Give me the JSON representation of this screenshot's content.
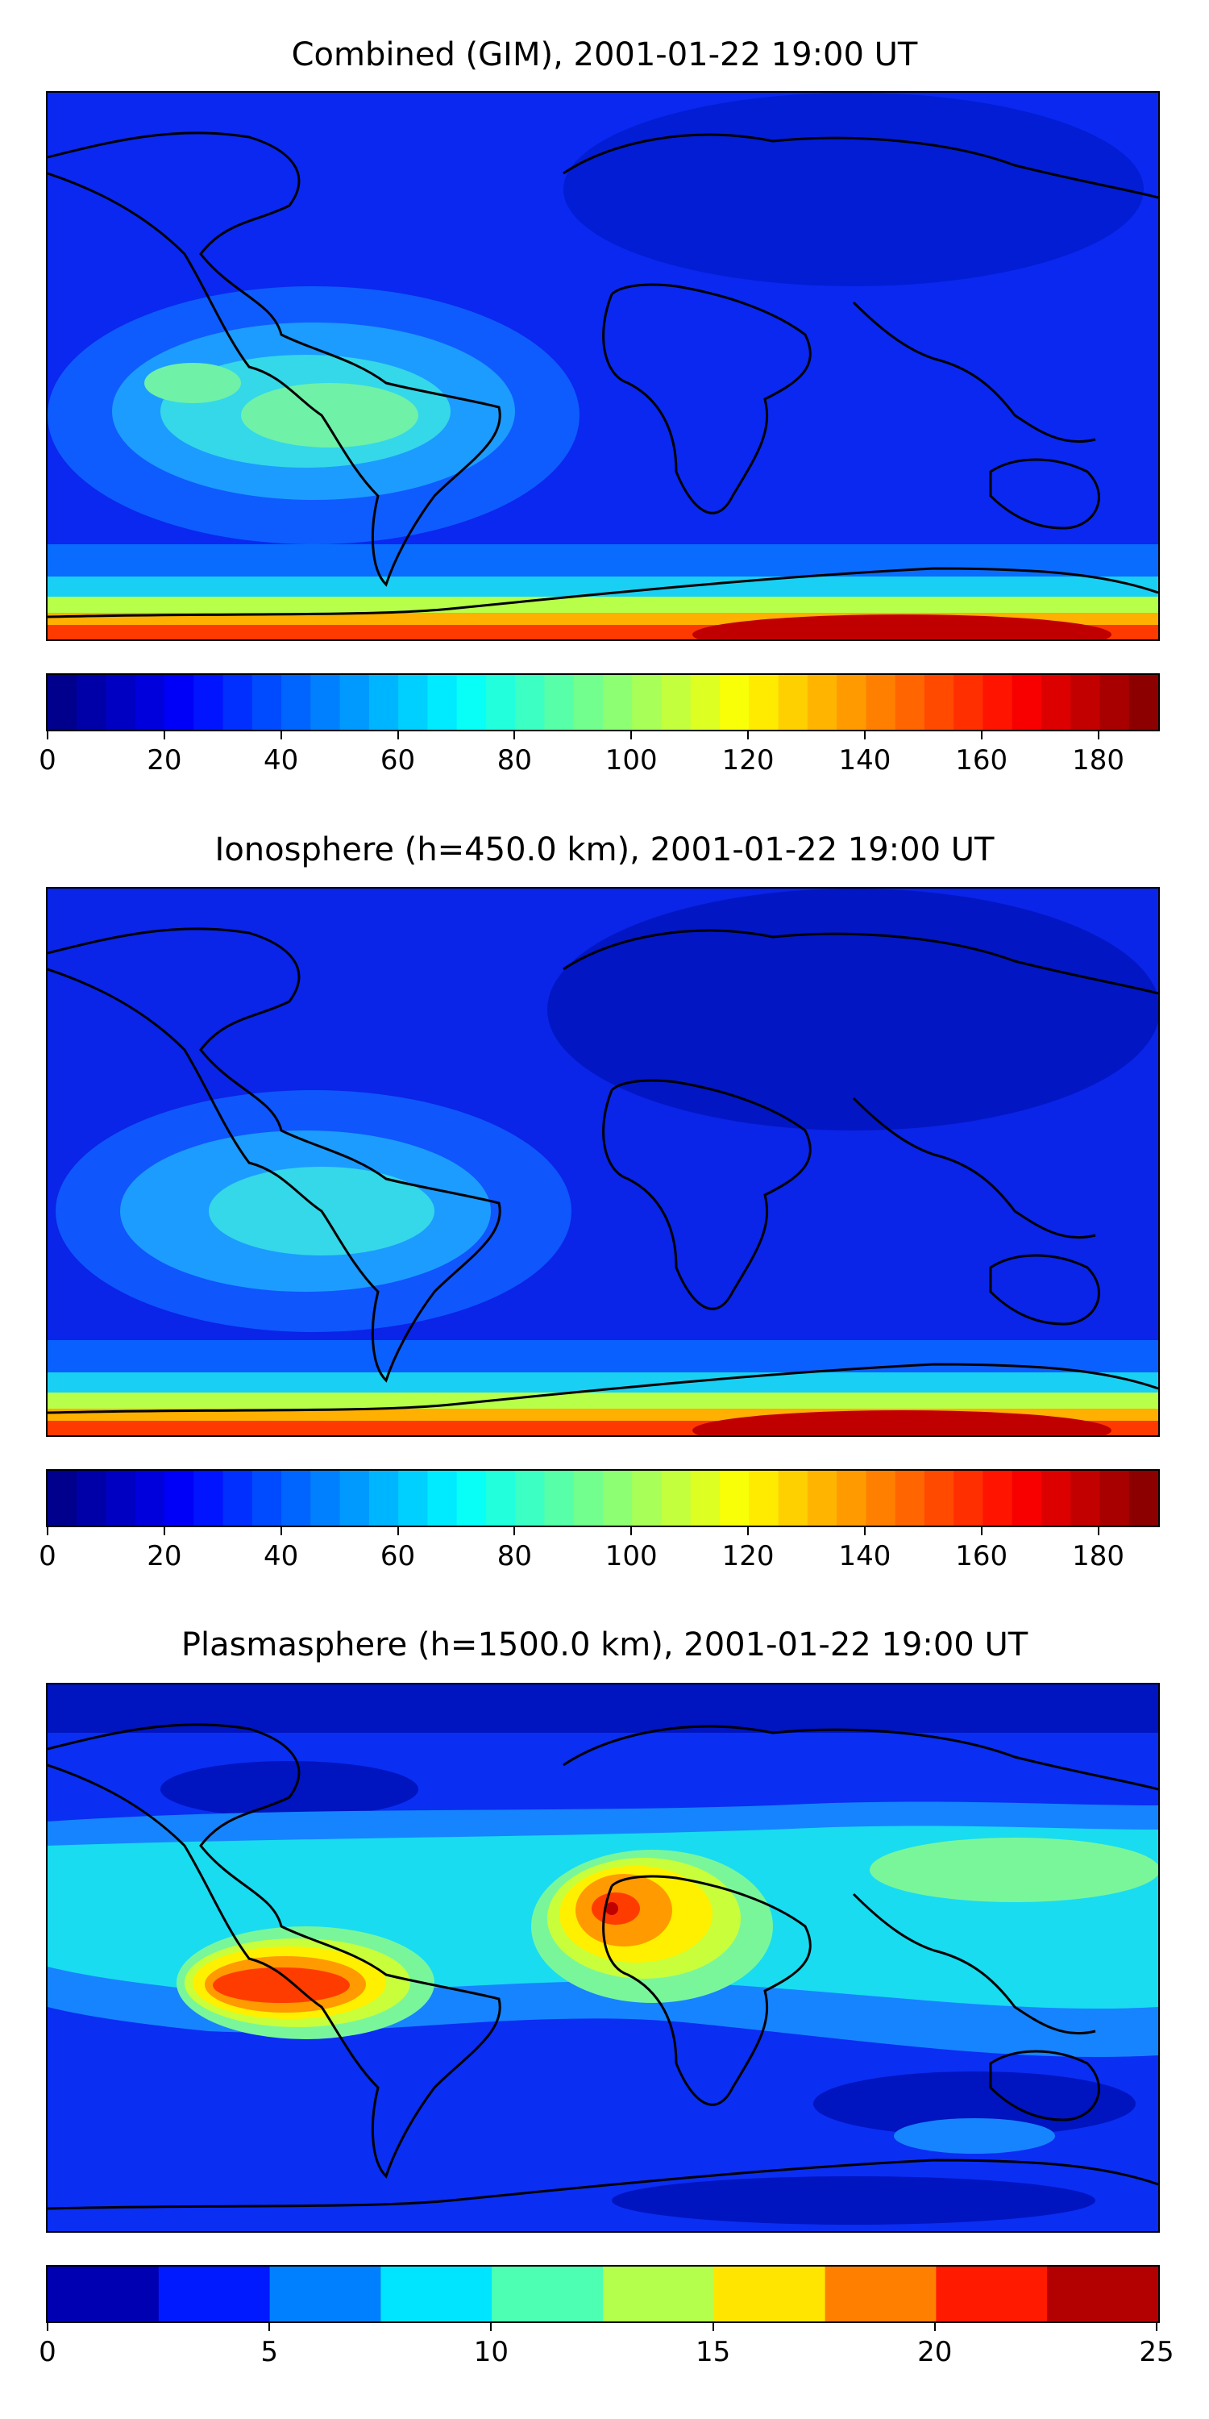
{
  "panels": [
    {
      "id": "combined",
      "title": "Combined (GIM), 2001-01-22 19:00 UT",
      "colorbar": {
        "min": 0,
        "max": 190,
        "levels": 38,
        "ticks": [
          "0",
          "20",
          "40",
          "60",
          "80",
          "100",
          "120",
          "140",
          "160",
          "180"
        ]
      },
      "pattern": "ionosphere"
    },
    {
      "id": "ionosphere",
      "title": "Ionosphere  (h=450.0 km), 2001-01-22 19:00 UT",
      "colorbar": {
        "min": 0,
        "max": 190,
        "levels": 38,
        "ticks": [
          "0",
          "20",
          "40",
          "60",
          "80",
          "100",
          "120",
          "140",
          "160",
          "180"
        ]
      },
      "pattern": "ionosphere"
    },
    {
      "id": "plasmasphere",
      "title": "Plasmasphere (h=1500.0 km), 2001-01-22 19:00 UT",
      "colorbar": {
        "min": 0,
        "max": 25,
        "levels": 10,
        "ticks": [
          "0",
          "5",
          "10",
          "15",
          "20",
          "25"
        ]
      },
      "pattern": "plasmasphere"
    }
  ],
  "colormap": "jet",
  "coastline_color": "#000000"
}
